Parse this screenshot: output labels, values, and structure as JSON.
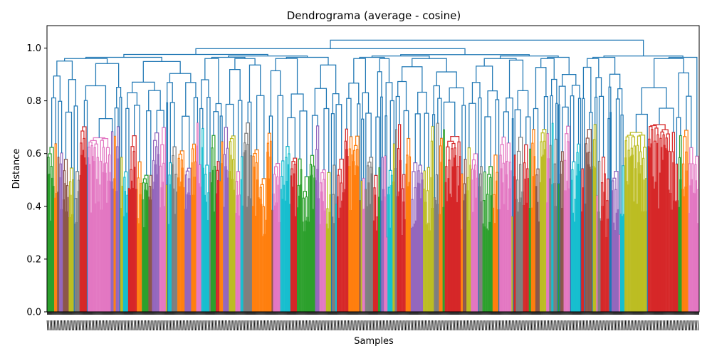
{
  "chart_data": {
    "type": "dendrogram",
    "title": "Dendrograma (average - cosine)",
    "xlabel": "Samples",
    "ylabel": "Distance",
    "ylim": [
      0,
      1.085
    ],
    "yticks": [
      0.0,
      0.2,
      0.4,
      0.6,
      0.8,
      1.0
    ],
    "ytick_labels": [
      "0.0",
      "0.2",
      "0.4",
      "0.6",
      "0.8",
      "1.0"
    ],
    "above_threshold_color": "#1f77b4",
    "cluster_colors": [
      "#d62728",
      "#2ca02c",
      "#ff7f0e",
      "#9467bd",
      "#8c564b",
      "#e377c2",
      "#bcbd22",
      "#17becf",
      "#7f7f7f"
    ],
    "leaf_count_approx": 900,
    "top_merge_height": 1.03,
    "major_merges": [
      {
        "height": 1.03,
        "description": "root merge"
      },
      {
        "height": 1.02,
        "description": "right half merge"
      },
      {
        "height": 0.99,
        "description": "left half merge"
      },
      {
        "height": 0.97,
        "description": "right subgroup merge"
      },
      {
        "height": 0.94,
        "description": "far-right subgroup merge"
      }
    ],
    "prominent_clusters": [
      {
        "color": "#e377c2",
        "max_height": 0.66,
        "position": "left"
      },
      {
        "color": "#d62728",
        "max_height": 0.66,
        "position": "center-right"
      },
      {
        "color": "#bcbd22",
        "max_height": 0.68,
        "position": "right"
      },
      {
        "color": "#d62728",
        "max_height": 0.71,
        "position": "far-right"
      }
    ]
  }
}
